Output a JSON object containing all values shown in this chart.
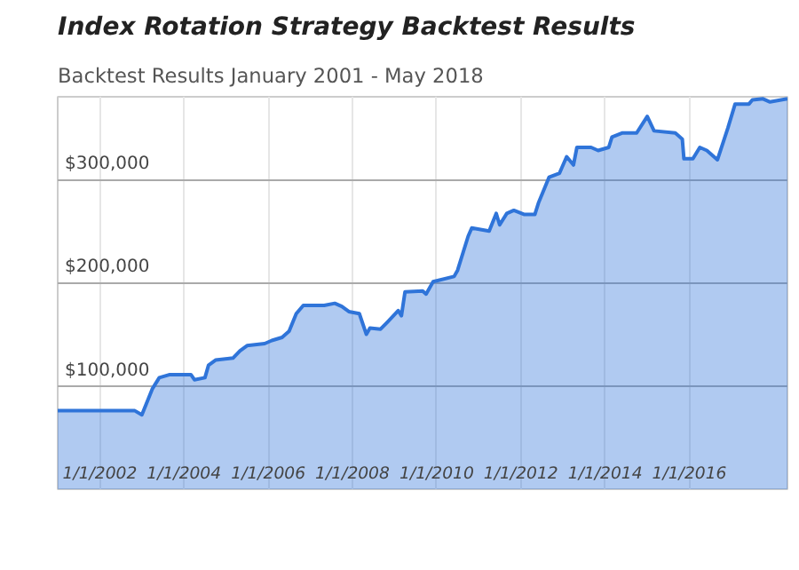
{
  "chart_data": {
    "type": "area",
    "title": "Index Rotation Strategy Backtest Results",
    "subtitle": "Backtest Results January 2001 - May 2018",
    "x": [
      "2001-01",
      "2002-11",
      "2003-01",
      "2003-04",
      "2003-06",
      "2003-09",
      "2004-03",
      "2004-04",
      "2004-07",
      "2004-08",
      "2004-10",
      "2005-03",
      "2005-05",
      "2005-07",
      "2005-12",
      "2006-02",
      "2006-05",
      "2006-07",
      "2006-09",
      "2006-11",
      "2007-05",
      "2007-08",
      "2007-10",
      "2007-12",
      "2008-03",
      "2008-05",
      "2008-06",
      "2008-09",
      "2008-11",
      "2009-02",
      "2009-03",
      "2009-04",
      "2009-09",
      "2009-10",
      "2009-12",
      "2010-06",
      "2010-07",
      "2010-10",
      "2010-11",
      "2011-04",
      "2011-06",
      "2011-07",
      "2011-09",
      "2011-11",
      "2012-02",
      "2012-05",
      "2012-06",
      "2012-09",
      "2012-12",
      "2013-02",
      "2013-04",
      "2013-05",
      "2013-09",
      "2013-11",
      "2014-02",
      "2014-03",
      "2014-06",
      "2014-10",
      "2015-01",
      "2015-03",
      "2015-09",
      "2015-11-01",
      "2015-11-15",
      "2016-02",
      "2016-04",
      "2016-06",
      "2016-09",
      "2016-12",
      "2017-02",
      "2017-06",
      "2017-07",
      "2017-10",
      "2017-12",
      "2018-05"
    ],
    "series": [
      {
        "color": "#2f74d9",
        "values": [
          76000,
          76000,
          72000,
          97000,
          108000,
          111000,
          111000,
          106000,
          108000,
          120000,
          125000,
          127000,
          134000,
          139000,
          141000,
          144000,
          147000,
          153000,
          170000,
          178000,
          178000,
          180000,
          177000,
          172000,
          170000,
          150000,
          156000,
          155000,
          162000,
          173000,
          168000,
          191000,
          192000,
          189000,
          201000,
          206000,
          212000,
          245000,
          253000,
          250000,
          267000,
          256000,
          267000,
          270000,
          266000,
          266000,
          277000,
          302000,
          306000,
          322000,
          314000,
          331000,
          331000,
          328000,
          331000,
          341000,
          345000,
          345000,
          361000,
          347000,
          345000,
          339000,
          320000,
          320000,
          331000,
          328000,
          319000,
          350000,
          373000,
          373000,
          377000,
          378000,
          375000,
          378000
        ]
      }
    ],
    "xlim": [
      "2001-01",
      "2018-05"
    ],
    "xticks": [
      {
        "value": "2002-01",
        "label": "1/1/2002"
      },
      {
        "value": "2004-01",
        "label": "1/1/2004"
      },
      {
        "value": "2006-01",
        "label": "1/1/2006"
      },
      {
        "value": "2008-01",
        "label": "1/1/2008"
      },
      {
        "value": "2010-01",
        "label": "1/1/2010"
      },
      {
        "value": "2012-01",
        "label": "1/1/2012"
      },
      {
        "value": "2014-01",
        "label": "1/1/2014"
      },
      {
        "value": "2016-01",
        "label": "1/1/2016"
      }
    ],
    "ylim": [
      0,
      380000
    ],
    "yticks": [
      {
        "value": 100000,
        "label": "$100,000"
      },
      {
        "value": 200000,
        "label": "$200,000"
      },
      {
        "value": 300000,
        "label": "$300,000"
      }
    ],
    "grid": true
  }
}
